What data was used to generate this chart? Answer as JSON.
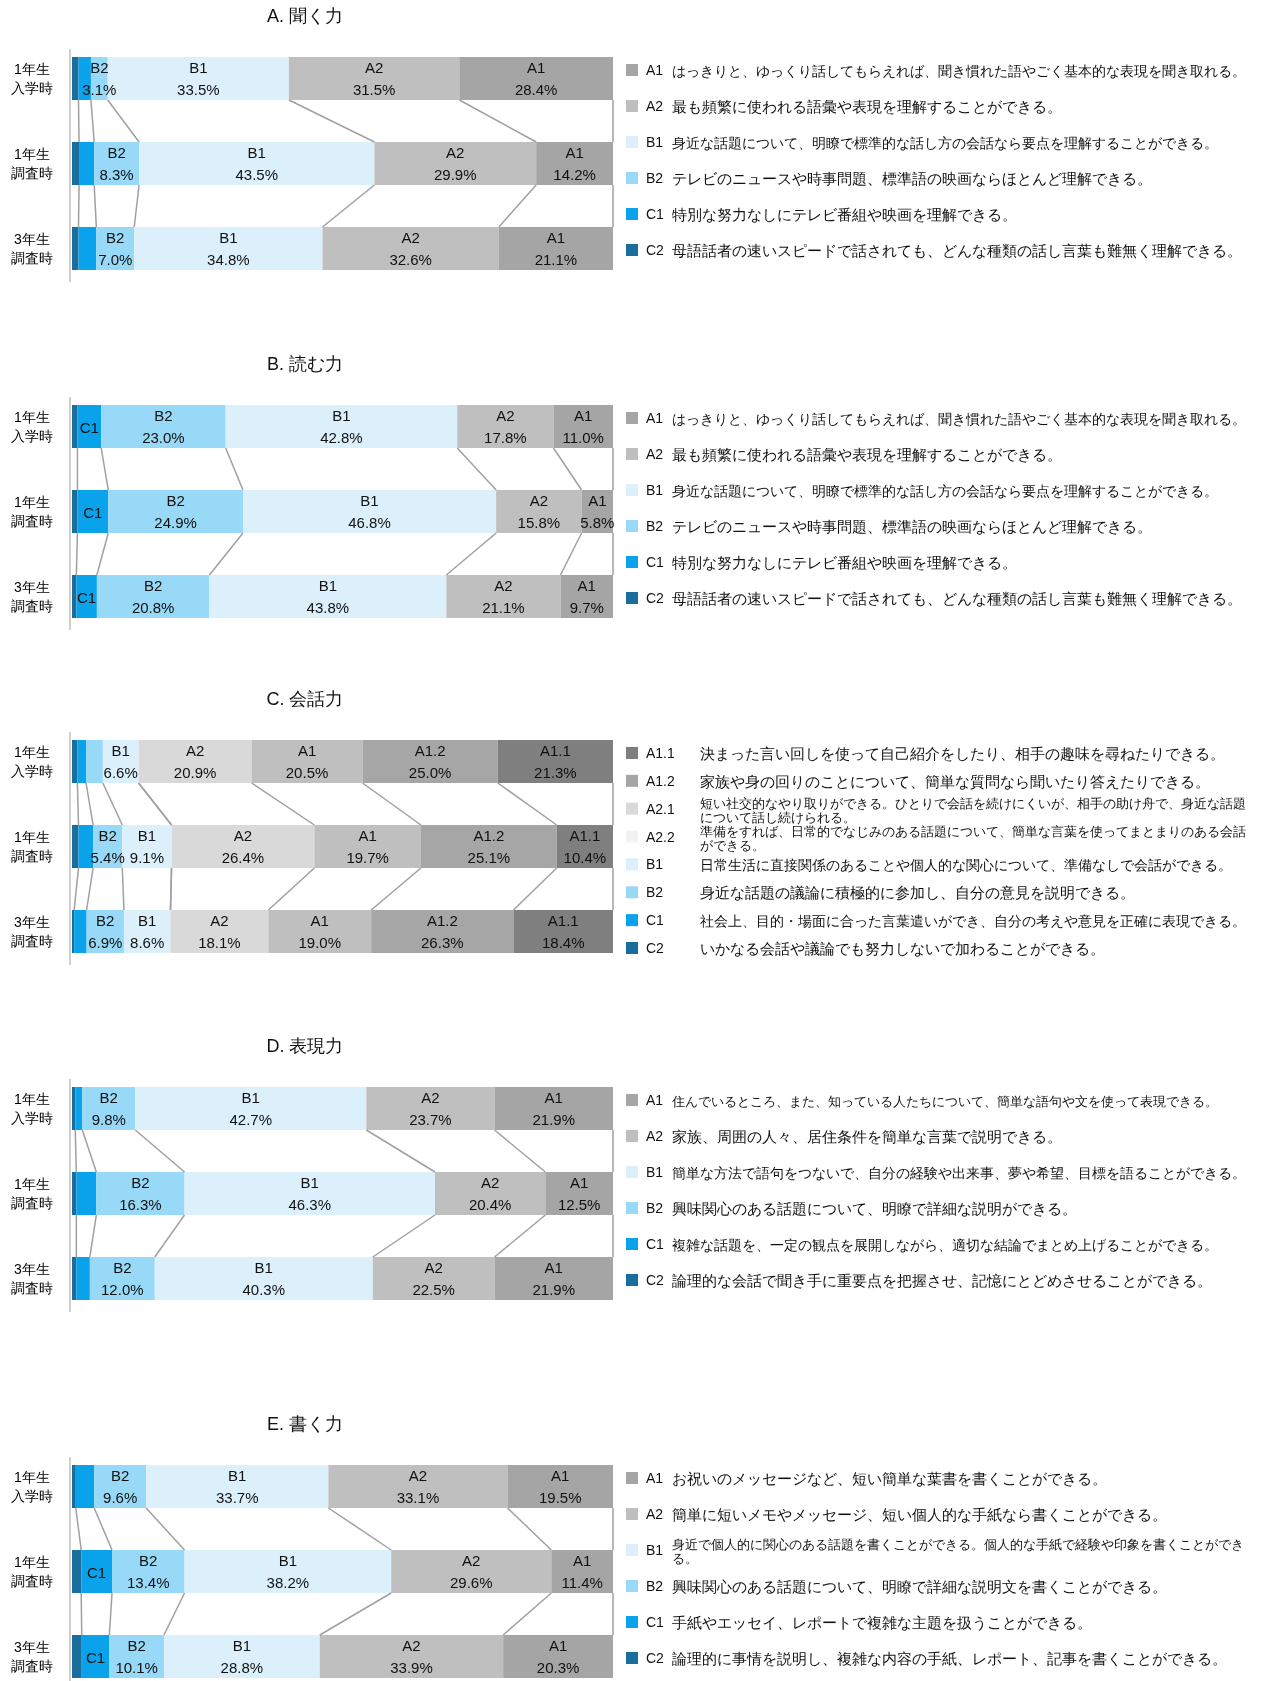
{
  "chart_data": [
    {
      "type": "bar",
      "orientation": "horizontal",
      "stacked": true,
      "legend": "right",
      "title": "A. 聞く力",
      "categories": [
        "1年生入学時",
        "1年生調査時",
        "3年生調査時"
      ],
      "series": [
        {
          "name": "C2",
          "color": "#1a6e9e",
          "values": [
            1.2,
            1.3,
            1.2
          ],
          "value_labels": [
            null,
            null,
            null
          ]
        },
        {
          "name": "C1",
          "color": "#0aa2ea",
          "values": [
            2.3,
            2.8,
            3.3
          ],
          "value_labels": [
            null,
            null,
            null
          ]
        },
        {
          "name": "B2",
          "color": "#97d9f7",
          "values": [
            3.1,
            8.3,
            7.0
          ],
          "value_labels": [
            "B2\n3.1%",
            "B2\n8.3%",
            "B2\n7.0%"
          ]
        },
        {
          "name": "B1",
          "color": "#dbf0fb",
          "values": [
            33.5,
            43.5,
            34.8
          ],
          "value_labels": [
            "B1\n33.5%",
            "B1\n43.5%",
            "B1\n34.8%"
          ]
        },
        {
          "name": "A2",
          "color": "#bfbfbf",
          "values": [
            31.5,
            29.9,
            32.6
          ],
          "value_labels": [
            "A2\n31.5%",
            "A2\n29.9%",
            "A2\n32.6%"
          ]
        },
        {
          "name": "A1",
          "color": "#a5a5a5",
          "values": [
            28.4,
            14.2,
            21.1
          ],
          "value_labels": [
            "A1\n28.4%",
            "A1\n14.2%",
            "A1\n21.1%"
          ]
        }
      ],
      "annotations": [
        "はっきりと、ゆっくり話してもらえれば、聞き慣れた語やごく基本的な表現を聞き取れる。",
        "最も頻繁に使われる語彙や表現を理解することができる。",
        "身近な話題について、明瞭で標準的な話し方の会話なら要点を理解することができる。",
        "テレビのニュースや時事問題、標準語の映画ならほとんど理解できる。",
        "特別な努力なしにテレビ番組や映画を理解できる。",
        "母語話者の速いスピードで話されても、どんな種類の話し言葉も難無く理解できる。"
      ]
    },
    {
      "type": "bar",
      "orientation": "horizontal",
      "stacked": true,
      "legend": "right",
      "title": "B. 読む力",
      "categories": [
        "1年生入学時",
        "1年生調査時",
        "3年生調査時"
      ],
      "series": [
        {
          "name": "C2",
          "color": "#1a6e9e",
          "values": [
            1.0,
            1.0,
            0.8
          ],
          "value_labels": [
            null,
            null,
            null
          ]
        },
        {
          "name": "C1",
          "color": "#0aa2ea",
          "values": [
            4.4,
            5.7,
            3.8
          ],
          "value_labels": [
            "C1",
            "C1",
            "C1"
          ]
        },
        {
          "name": "B2",
          "color": "#97d9f7",
          "values": [
            23.0,
            24.9,
            20.8
          ],
          "value_labels": [
            "B2\n23.0%",
            "B2\n24.9%",
            "B2\n20.8%"
          ]
        },
        {
          "name": "B1",
          "color": "#dbf0fb",
          "values": [
            42.8,
            46.8,
            43.8
          ],
          "value_labels": [
            "B1\n42.8%",
            "B1\n46.8%",
            "B1\n43.8%"
          ]
        },
        {
          "name": "A2",
          "color": "#bfbfbf",
          "values": [
            17.8,
            15.8,
            21.1
          ],
          "value_labels": [
            "A2\n17.8%",
            "A2\n15.8%",
            "A2\n21.1%"
          ]
        },
        {
          "name": "A1",
          "color": "#a5a5a5",
          "values": [
            11.0,
            5.8,
            9.7
          ],
          "value_labels": [
            "A1\n11.0%",
            "A1\n5.8%",
            "A1\n9.7%"
          ]
        }
      ],
      "annotations": [
        "はっきりと、ゆっくり話してもらえれば、聞き慣れた語やごく基本的な表現を聞き取れる。",
        "最も頻繁に使われる語彙や表現を理解することができる。",
        "身近な話題について、明瞭で標準的な話し方の会話なら要点を理解することができる。",
        "テレビのニュースや時事問題、標準語の映画ならほとんど理解できる。",
        "特別な努力なしにテレビ番組や映画を理解できる。",
        "母語話者の速いスピードで話されても、どんな種類の話し言葉も難無く理解できる。"
      ]
    },
    {
      "type": "bar",
      "orientation": "horizontal",
      "stacked": true,
      "legend": "right",
      "title": "C. 会話力",
      "categories": [
        "1年生入学時",
        "1年生調査時",
        "3年生調査時"
      ],
      "series": [
        {
          "name": "C2",
          "color": "#1a6e9e",
          "values": [
            1.0,
            1.2,
            0.4
          ],
          "value_labels": [
            null,
            null,
            null
          ]
        },
        {
          "name": "C1",
          "color": "#0aa2ea",
          "values": [
            1.6,
            2.7,
            2.3
          ],
          "value_labels": [
            null,
            null,
            null
          ]
        },
        {
          "name": "B2",
          "color": "#97d9f7",
          "values": [
            3.1,
            5.4,
            6.9
          ],
          "value_labels": [
            null,
            "B2\n5.4%",
            "B2\n6.9%"
          ]
        },
        {
          "name": "B1",
          "color": "#dbf0fb",
          "values": [
            6.6,
            9.1,
            8.6
          ],
          "value_labels": [
            "B1\n6.6%",
            "B1\n9.1%",
            "B1\n8.6%"
          ]
        },
        {
          "name": "A2.2",
          "color": "#f2f2f2",
          "values": [
            null,
            null,
            null
          ],
          "value_labels": [
            null,
            null,
            null
          ]
        },
        {
          "name": "A2.1",
          "color": "#d9d9d9",
          "values": [
            20.9,
            26.4,
            18.1
          ],
          "value_labels": [
            "A2\n20.9%",
            "A2\n26.4%",
            "A2\n18.1%"
          ]
        },
        {
          "color": "#bfbfbf",
          "values": [
            20.5,
            19.7,
            19.0
          ],
          "value_labels": [
            "A1\n20.5%",
            "A1\n19.7%",
            "A1\n19.0%"
          ]
        },
        {
          "name": "A1.2",
          "color": "#a6a6a6",
          "values": [
            25.0,
            25.1,
            26.3
          ],
          "value_labels": [
            "A1.2\n25.0%",
            "A1.2\n25.1%",
            "A1.2\n26.3%"
          ]
        },
        {
          "name": "A1.1",
          "color": "#7f7f7f",
          "values": [
            21.3,
            10.4,
            18.4
          ],
          "value_labels": [
            "A1.1\n21.3%",
            "A1.1\n10.4%",
            "A1.1\n18.4%"
          ]
        }
      ],
      "annotations": [
        "決まった言い回しを使って自己紹介をしたり、相手の趣味を尋ねたりできる。",
        "家族や身の回りのことについて、簡単な質問なら聞いたり答えたりできる。",
        "短い社交的なやり取りができる。ひとりで会話を続けにくいが、相手の助け舟で、身近な話題について話し続けられる。",
        "準備をすれば、日常的でなじみのある話題について、簡単な言葉を使ってまとまりのある会話ができる。",
        "日常生活に直接関係のあることや個人的な関心について、準備なしで会話ができる。",
        "身近な話題の議論に積極的に参加し、自分の意見を説明できる。",
        "社会上、目的・場面に合った言葉遣いができ、自分の考えや意見を正確に表現できる。",
        "いかなる会話や議論でも努力しないで加わることができる。"
      ]
    },
    {
      "type": "bar",
      "orientation": "horizontal",
      "stacked": true,
      "legend": "right",
      "title": "D. 表現力",
      "categories": [
        "1年生入学時",
        "1年生調査時",
        "3年生調査時"
      ],
      "series": [
        {
          "name": "C2",
          "color": "#1a6e9e",
          "values": [
            0.6,
            0.8,
            0.8
          ],
          "value_labels": [
            null,
            null,
            null
          ]
        },
        {
          "name": "C1",
          "color": "#0aa2ea",
          "values": [
            1.3,
            3.7,
            2.5
          ],
          "value_labels": [
            null,
            null,
            null
          ]
        },
        {
          "name": "B2",
          "color": "#97d9f7",
          "values": [
            9.8,
            16.3,
            12.0
          ],
          "value_labels": [
            "B2\n9.8%",
            "B2\n16.3%",
            "B2\n12.0%"
          ]
        },
        {
          "name": "B1",
          "color": "#dbf0fb",
          "values": [
            42.7,
            46.3,
            40.3
          ],
          "value_labels": [
            "B1\n42.7%",
            "B1\n46.3%",
            "B1\n40.3%"
          ]
        },
        {
          "name": "A2",
          "color": "#bfbfbf",
          "values": [
            23.7,
            20.4,
            22.5
          ],
          "value_labels": [
            "A2\n23.7%",
            "A2\n20.4%",
            "A2\n22.5%"
          ]
        },
        {
          "name": "A1",
          "color": "#a5a5a5",
          "values": [
            21.9,
            12.5,
            21.9
          ],
          "value_labels": [
            "A1\n21.9%",
            "A1\n12.5%",
            "A1\n21.9%"
          ]
        }
      ],
      "annotations": [
        "住んでいるところ、また、知っている人たちについて、簡単な語句や文を使って表現できる。",
        "家族、周囲の人々、居住条件を簡単な言葉で説明できる。",
        "簡単な方法で語句をつないで、自分の経験や出来事、夢や希望、目標を語ることができる。",
        "興味関心のある話題について、明瞭で詳細な説明ができる。",
        "複雑な話題を、一定の観点を展開しながら、適切な結論でまとめ上げることができる。",
        "論理的な会話で聞き手に重要点を把握させ、記憶にとどめさせることができる。"
      ]
    },
    {
      "type": "bar",
      "orientation": "horizontal",
      "stacked": true,
      "legend": "right",
      "title": "E. 書く力",
      "categories": [
        "1年生入学時",
        "1年生調査時",
        "3年生調査時"
      ],
      "series": [
        {
          "name": "C2",
          "color": "#1a6e9e",
          "values": [
            0.7,
            1.7,
            1.8
          ],
          "value_labels": [
            null,
            null,
            null
          ]
        },
        {
          "name": "C1",
          "color": "#0aa2ea",
          "values": [
            3.4,
            5.7,
            5.1
          ],
          "value_labels": [
            null,
            "C1",
            "C1"
          ]
        },
        {
          "name": "B2",
          "color": "#97d9f7",
          "values": [
            9.6,
            13.4,
            10.1
          ],
          "value_labels": [
            "B2\n9.6%",
            "B2\n13.4%",
            "B2\n10.1%"
          ]
        },
        {
          "name": "B1",
          "color": "#dbf0fb",
          "values": [
            33.7,
            38.2,
            28.8
          ],
          "value_labels": [
            "B1\n33.7%",
            "B1\n38.2%",
            "B1\n28.8%"
          ]
        },
        {
          "name": "A2",
          "color": "#bfbfbf",
          "values": [
            33.1,
            29.6,
            33.9
          ],
          "value_labels": [
            "A2\n33.1%",
            "A2\n29.6%",
            "A2\n33.9%"
          ]
        },
        {
          "name": "A1",
          "color": "#a5a5a5",
          "values": [
            19.5,
            11.4,
            20.3
          ],
          "value_labels": [
            "A1\n19.5%",
            "A1\n11.4%",
            "A1\n20.3%"
          ]
        }
      ],
      "annotations": [
        "お祝いのメッセージなど、短い簡単な葉書を書くことができる。",
        "簡単に短いメモやメッセージ、短い個人的な手紙なら書くことができる。",
        "身近で個人的に関心のある話題を書くことができる。個人的な手紙で経験や印象を書くことができる。",
        "興味関心のある話題について、明瞭で詳細な説明文を書くことができる。",
        "手紙やエッセイ、レポートで複雑な主題を扱うことができる。",
        "論理的に事情を説明し、複雑な内容の手紙、レポート、記事を書くことができる。"
      ]
    }
  ]
}
